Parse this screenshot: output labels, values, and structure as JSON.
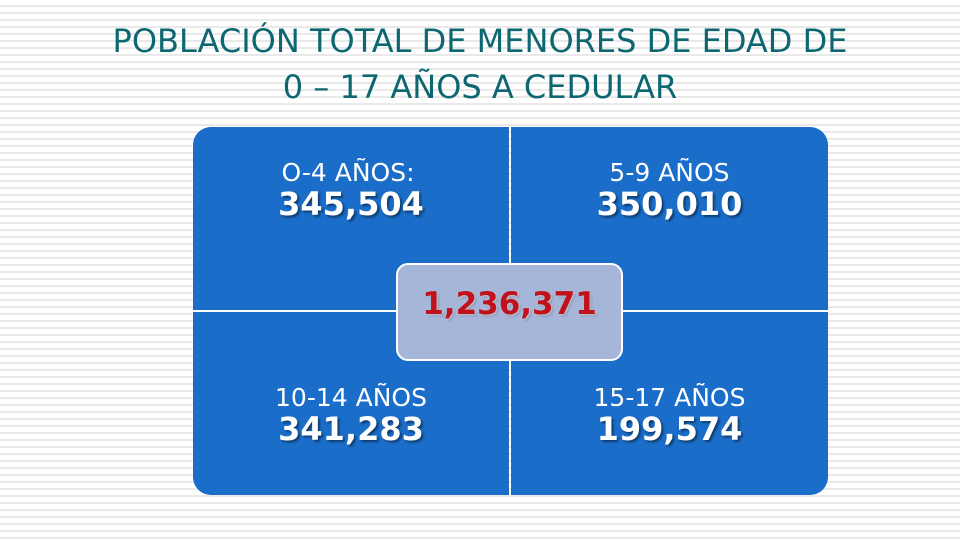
{
  "title": {
    "line1": "POBLACIÓN TOTAL DE MENORES  DE EDAD DE",
    "line2": "0 – 17 AÑOS A CEDULAR"
  },
  "groups": [
    {
      "label": "O-4 AÑOS:",
      "value": "345,504"
    },
    {
      "label": "5-9 AÑOS",
      "value": "350,010"
    },
    {
      "label": "10-14 AÑOS",
      "value": "341,283"
    },
    {
      "label": "15-17 AÑOS",
      "value": "199,574"
    }
  ],
  "total": "1,236,371",
  "colors": {
    "title": "#0d6770",
    "quadrant": "#1a6ec9",
    "center_box": "#a6b6d9",
    "total_text": "#c0121b"
  }
}
